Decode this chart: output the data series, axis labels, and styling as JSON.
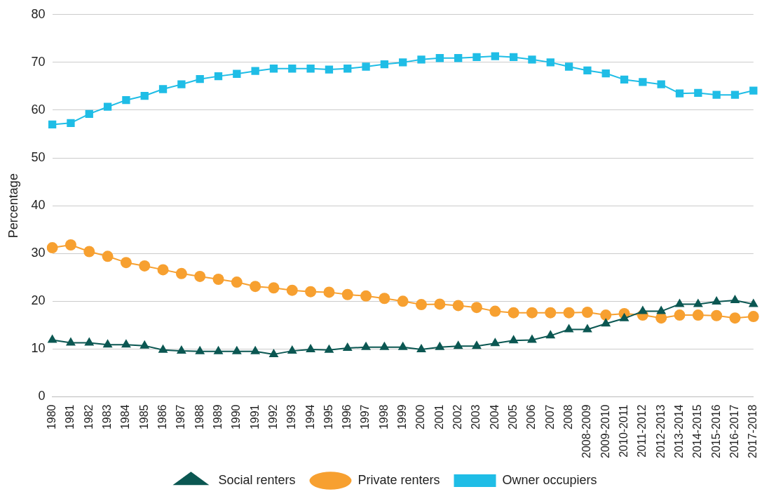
{
  "chart_data": {
    "type": "line",
    "ylabel": "Percentage",
    "ylim": [
      0,
      80
    ],
    "yticks": [
      0,
      10,
      20,
      30,
      40,
      50,
      60,
      70,
      80
    ],
    "grid": "y",
    "legend": "bottom",
    "line_style": "solid",
    "categories": [
      "1980",
      "1981",
      "1982",
      "1983",
      "1984",
      "1985",
      "1986",
      "1987",
      "1988",
      "1989",
      "1990",
      "1991",
      "1992",
      "1993",
      "1994",
      "1995",
      "1996",
      "1997",
      "1998",
      "1999",
      "2000",
      "2001",
      "2002",
      "2003",
      "2004",
      "2005",
      "2006",
      "2007",
      "2008",
      "2008-2009",
      "2009-2010",
      "2010-2011",
      "2011-2012",
      "2012-2013",
      "2013-2014",
      "2014-2015",
      "2015-2016",
      "2016-2017",
      "2017-2018"
    ],
    "series": [
      {
        "name": "Owner occupiers",
        "color": "#1fbde6",
        "marker": "square",
        "values": [
          57.0,
          57.3,
          59.2,
          60.7,
          62.1,
          63.0,
          64.4,
          65.4,
          66.5,
          67.1,
          67.6,
          68.2,
          68.7,
          68.7,
          68.7,
          68.5,
          68.7,
          69.1,
          69.6,
          70.0,
          70.6,
          70.9,
          70.9,
          71.1,
          71.3,
          71.1,
          70.6,
          70.0,
          69.1,
          68.3,
          67.7,
          66.4,
          65.9,
          65.4,
          63.5,
          63.6,
          63.2,
          63.2,
          64.1
        ]
      },
      {
        "name": "Private renters",
        "color": "#f7a030",
        "marker": "circle",
        "values": [
          31.2,
          31.8,
          30.4,
          29.4,
          28.1,
          27.4,
          26.6,
          25.8,
          25.2,
          24.6,
          24.0,
          23.1,
          22.8,
          22.3,
          22.0,
          21.9,
          21.4,
          21.1,
          20.6,
          20.0,
          19.3,
          19.4,
          19.1,
          18.7,
          17.9,
          17.6,
          17.6,
          17.6,
          17.6,
          17.7,
          17.1,
          17.4,
          17.1,
          16.5,
          17.1,
          17.1,
          17.0,
          16.5,
          16.8
        ]
      },
      {
        "name": "Social renters",
        "color": "#0b5752",
        "marker": "triangle",
        "values": [
          11.9,
          11.3,
          11.3,
          10.9,
          10.9,
          10.7,
          9.8,
          9.6,
          9.5,
          9.5,
          9.5,
          9.5,
          8.9,
          9.6,
          9.9,
          9.8,
          10.2,
          10.4,
          10.4,
          10.4,
          9.9,
          10.4,
          10.6,
          10.6,
          11.2,
          11.8,
          11.9,
          12.8,
          14.1,
          14.1,
          15.3,
          16.4,
          17.9,
          17.9,
          19.4,
          19.4,
          19.9,
          20.2,
          19.4
        ]
      }
    ]
  }
}
